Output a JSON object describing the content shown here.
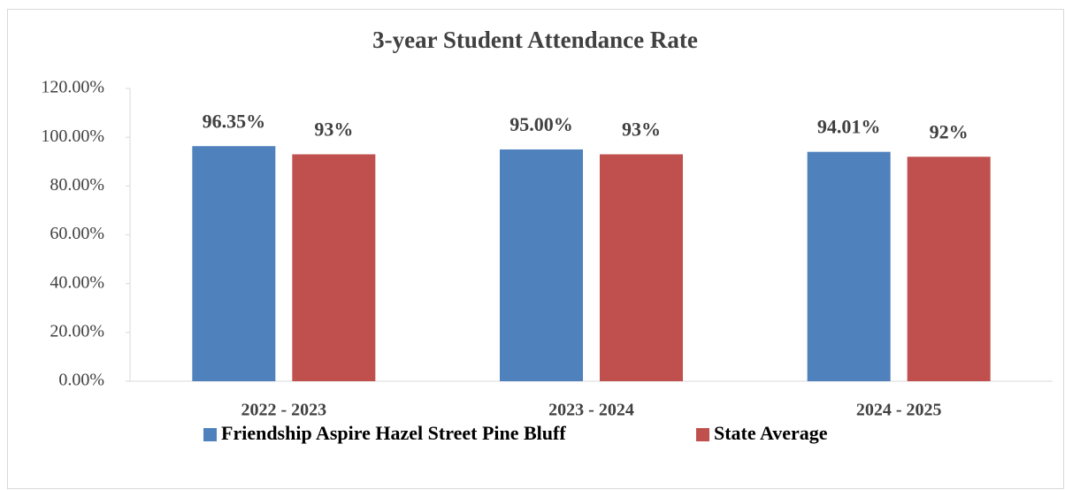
{
  "chart_data": {
    "type": "bar",
    "title": "3-year Student Attendance Rate",
    "categories": [
      "2022 - 2023",
      "2023 - 2024",
      "2024 - 2025"
    ],
    "series": [
      {
        "name": "Friendship Aspire Hazel Street Pine Bluff",
        "color": "#4f81bd",
        "values": [
          96.35,
          95.0,
          94.01
        ],
        "value_labels": [
          "96.35%",
          "95.00%",
          "94.01%"
        ]
      },
      {
        "name": "State Average",
        "color": "#c0504d",
        "values": [
          93,
          93,
          92
        ],
        "value_labels": [
          "93%",
          "93%",
          "92%"
        ]
      }
    ],
    "ylim": [
      0,
      120
    ],
    "yticks": [
      {
        "value": 0,
        "label": "0.00%"
      },
      {
        "value": 20,
        "label": "20.00%"
      },
      {
        "value": 40,
        "label": "40.00%"
      },
      {
        "value": 60,
        "label": "60.00%"
      },
      {
        "value": 80,
        "label": "80.00%"
      },
      {
        "value": 100,
        "label": "100.00%"
      },
      {
        "value": 120,
        "label": "120.00%"
      }
    ],
    "grid": false,
    "legend": "bottom"
  }
}
